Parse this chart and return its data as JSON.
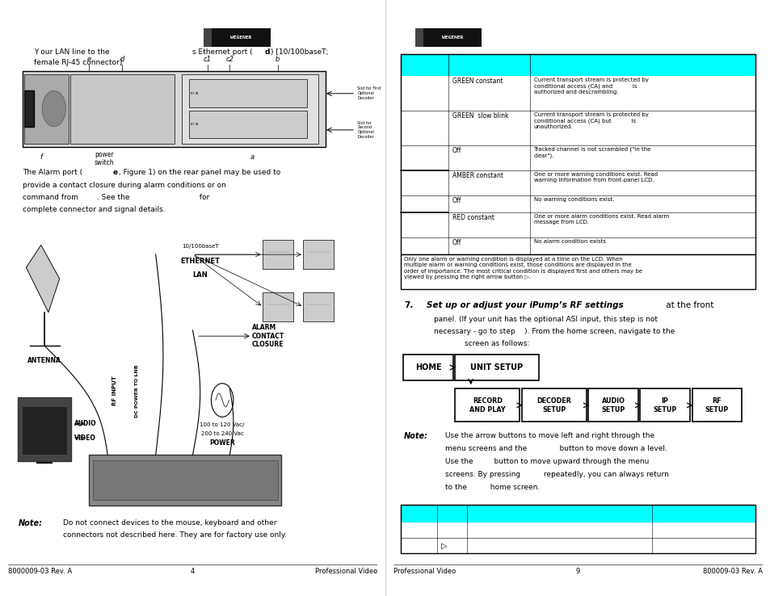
{
  "bg_color": "#ffffff",
  "cyan_color": "#00ffff",
  "left_page": {
    "footer_left": "8000009-03 Rev. A",
    "footer_center": "4",
    "footer_right": "Professional Video"
  },
  "right_page": {
    "footer_left": "Professional Video",
    "footer_center": "9",
    "footer_right": "800009-03 Rev. A",
    "table_rows_col2": [
      "GREEN constant",
      "GREEN  slow blink",
      "Off",
      "AMBER constant",
      "Off",
      "RED constant",
      "Off"
    ],
    "table_rows_col3": [
      "Current transport stream is protected by\nconditional access (CA) and           is\nauthorized and descrambling.",
      "Current transport stream is protected by\nconditional access (CA) but           is\nunauthorized.",
      "Tracked channel is not scrambled (\"in the\nclear\").",
      "One or more warning conditions exist. Read\nwarning information from front-panel LCD.",
      "No warning conditions exist.",
      "One or more alarm conditions exist. Read alarm\nmessage from LCD.",
      "No alarm condition exists"
    ],
    "table_footer": "Only one alarm or warning condition is displayed at a time on the LCD. When\nmultiple alarm or warning conditions exist, those conditions are displayed in the\norder of importance. The most critical condition is displayed first and others may be\nviewed by pressing the right arrow button ▷.",
    "step7_bold": "Set up or adjust your iPump’s RF settings",
    "step7_normal": " at the front",
    "step7_rest1": "panel. (If your unit has the optional ASI input, this step is not",
    "step7_rest2": "necessary - go to step    ). From the home screen, navigate to the",
    "step7_rest3": "screen as follows:",
    "nav_row1": [
      "HOME",
      "UNIT SETUP"
    ],
    "nav_row2": [
      "RECORD\nAND PLAY",
      "DECODER\nSETUP",
      "AUDIO\nSETUP",
      "IP\nSETUP",
      "RF\nSETUP"
    ],
    "note2_lines": [
      "Use the arrow buttons to move left and right through the",
      "menu screens and the              button to move down a level.",
      "Use the         button to move upward through the menu",
      "screens. By pressing          repeatedly, you can always return",
      "to the          home screen."
    ]
  }
}
